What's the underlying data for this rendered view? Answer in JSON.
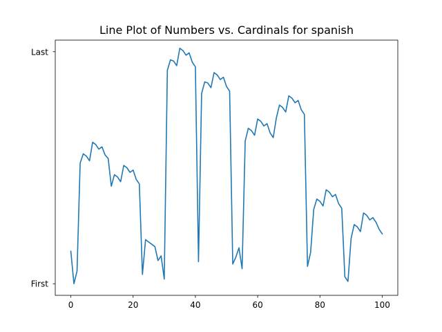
{
  "chart_data": {
    "type": "line",
    "title": "Line Plot of Numbers vs. Cardinals for spanish",
    "xlabel": "",
    "ylabel": "",
    "xlim": [
      -5,
      105
    ],
    "ylim": [
      -0.05,
      1.05
    ],
    "x_ticks": [
      0,
      20,
      40,
      60,
      80,
      100
    ],
    "x_tick_labels": [
      "0",
      "20",
      "40",
      "60",
      "80",
      "100"
    ],
    "y_ticks": [
      0,
      1
    ],
    "y_tick_labels": [
      "First",
      "Last"
    ],
    "grid": false,
    "legend": "none",
    "series_color": "#1f77b4",
    "x": [
      0,
      1,
      2,
      3,
      4,
      5,
      6,
      7,
      8,
      9,
      10,
      11,
      12,
      13,
      14,
      15,
      16,
      17,
      18,
      19,
      20,
      21,
      22,
      23,
      24,
      25,
      26,
      27,
      28,
      29,
      30,
      31,
      32,
      33,
      34,
      35,
      36,
      37,
      38,
      39,
      40,
      41,
      42,
      43,
      44,
      45,
      46,
      47,
      48,
      49,
      50,
      51,
      52,
      53,
      54,
      55,
      56,
      57,
      58,
      59,
      60,
      61,
      62,
      63,
      64,
      65,
      66,
      67,
      68,
      69,
      70,
      71,
      72,
      73,
      74,
      75,
      76,
      77,
      78,
      79,
      80,
      81,
      82,
      83,
      84,
      85,
      86,
      87,
      88,
      89,
      90,
      91,
      92,
      93,
      94,
      95,
      96,
      97,
      98,
      99,
      100
    ],
    "series": [
      {
        "values": [
          0.14,
          0.0,
          0.055,
          0.52,
          0.56,
          0.55,
          0.53,
          0.61,
          0.6,
          0.58,
          0.59,
          0.555,
          0.54,
          0.42,
          0.47,
          0.46,
          0.44,
          0.51,
          0.5,
          0.48,
          0.49,
          0.45,
          0.43,
          0.04,
          0.19,
          0.18,
          0.17,
          0.16,
          0.1,
          0.12,
          0.02,
          0.92,
          0.965,
          0.96,
          0.94,
          1.015,
          1.005,
          0.985,
          0.995,
          0.955,
          0.935,
          0.095,
          0.82,
          0.87,
          0.865,
          0.845,
          0.91,
          0.9,
          0.88,
          0.89,
          0.85,
          0.83,
          0.085,
          0.115,
          0.155,
          0.065,
          0.615,
          0.67,
          0.66,
          0.64,
          0.71,
          0.7,
          0.68,
          0.69,
          0.65,
          0.63,
          0.715,
          0.77,
          0.76,
          0.74,
          0.81,
          0.8,
          0.78,
          0.79,
          0.75,
          0.73,
          0.075,
          0.135,
          0.32,
          0.365,
          0.355,
          0.335,
          0.405,
          0.395,
          0.375,
          0.385,
          0.345,
          0.325,
          0.03,
          0.01,
          0.195,
          0.255,
          0.245,
          0.225,
          0.305,
          0.295,
          0.275,
          0.285,
          0.265,
          0.235,
          0.215
        ]
      }
    ]
  }
}
